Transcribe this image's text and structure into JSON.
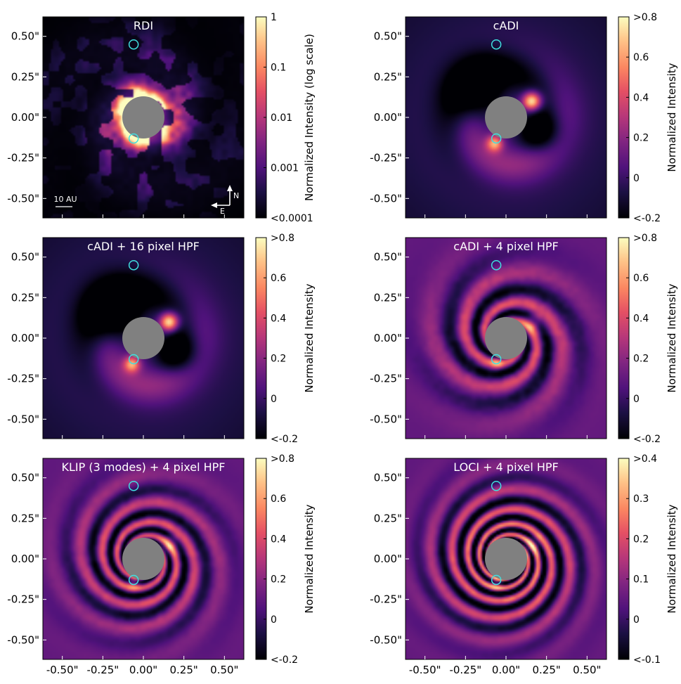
{
  "figure": {
    "axis_ticks": [
      "-0.50\"",
      "-0.25\"",
      "0.00\"",
      "0.25\"",
      "0.50\""
    ],
    "axis_tick_values": [
      -0.5,
      -0.25,
      0.0,
      0.25,
      0.5
    ],
    "axis_range": [
      -0.62,
      0.62
    ],
    "mask_color": "#808080",
    "circle_color": "#40e0e0",
    "label_color": "#ffffff",
    "colormap": "magma"
  },
  "chart_data": [
    {
      "type": "heatmap",
      "title": "RDI",
      "colorbar_label": "Normalized Intensity (log scale)",
      "colorbar_ticks": [
        "1",
        "0.1",
        "0.01",
        "0.001",
        "<0.0001"
      ],
      "colorbar_tick_fracs": [
        1.0,
        0.75,
        0.5,
        0.25,
        0.0
      ],
      "style": "rdi",
      "scale_bar_label": "10 AU",
      "compass": {
        "north": "N",
        "east": "E"
      },
      "circles": [
        {
          "x": -0.06,
          "y": 0.45
        },
        {
          "x": -0.06,
          "y": -0.13
        }
      ],
      "mask": {
        "x": 0.0,
        "y": 0.0,
        "r": 0.13
      }
    },
    {
      "type": "heatmap",
      "title": "cADI",
      "colorbar_label": "Normalized Intensity",
      "colorbar_ticks": [
        ">0.8",
        "0.6",
        "0.4",
        "0.2",
        "0",
        "<-0.2"
      ],
      "colorbar_tick_fracs": [
        1.0,
        0.8,
        0.6,
        0.4,
        0.2,
        0.0
      ],
      "style": "cadi",
      "circles": [
        {
          "x": -0.06,
          "y": 0.45
        },
        {
          "x": -0.06,
          "y": -0.13
        }
      ],
      "mask": {
        "x": 0.0,
        "y": 0.0,
        "r": 0.13
      }
    },
    {
      "type": "heatmap",
      "title": "cADI + 16 pixel HPF",
      "colorbar_label": "Normalized Intensity",
      "colorbar_ticks": [
        ">0.8",
        "0.6",
        "0.4",
        "0.2",
        "0",
        "<-0.2"
      ],
      "colorbar_tick_fracs": [
        1.0,
        0.8,
        0.6,
        0.4,
        0.2,
        0.0
      ],
      "style": "cadi16",
      "circles": [
        {
          "x": -0.06,
          "y": 0.45
        },
        {
          "x": -0.06,
          "y": -0.13
        }
      ],
      "mask": {
        "x": 0.0,
        "y": 0.0,
        "r": 0.13
      }
    },
    {
      "type": "heatmap",
      "title": "cADI + 4 pixel HPF",
      "colorbar_label": "Normalized Intensity",
      "colorbar_ticks": [
        ">0.8",
        "0.6",
        "0.4",
        "0.2",
        "0",
        "<-0.2"
      ],
      "colorbar_tick_fracs": [
        1.0,
        0.8,
        0.6,
        0.4,
        0.2,
        0.0
      ],
      "style": "cadi4",
      "circles": [
        {
          "x": -0.06,
          "y": 0.45
        },
        {
          "x": -0.06,
          "y": -0.13
        }
      ],
      "mask": {
        "x": 0.0,
        "y": 0.0,
        "r": 0.13
      }
    },
    {
      "type": "heatmap",
      "title": "KLIP (3 modes) + 4 pixel HPF",
      "colorbar_label": "Normalized Intensity",
      "colorbar_ticks": [
        ">0.8",
        "0.6",
        "0.4",
        "0.2",
        "0",
        "<-0.2"
      ],
      "colorbar_tick_fracs": [
        1.0,
        0.8,
        0.6,
        0.4,
        0.2,
        0.0
      ],
      "style": "klip",
      "circles": [
        {
          "x": -0.06,
          "y": 0.45
        },
        {
          "x": -0.06,
          "y": -0.13
        }
      ],
      "mask": {
        "x": 0.0,
        "y": 0.0,
        "r": 0.13
      }
    },
    {
      "type": "heatmap",
      "title": "LOCI + 4 pixel HPF",
      "colorbar_label": "Normalized Intensity",
      "colorbar_ticks": [
        ">0.4",
        "0.3",
        "0.2",
        "0.1",
        "0",
        "<-0.1"
      ],
      "colorbar_tick_fracs": [
        1.0,
        0.8,
        0.6,
        0.4,
        0.2,
        0.0
      ],
      "style": "loci",
      "circles": [
        {
          "x": -0.06,
          "y": 0.45
        },
        {
          "x": -0.06,
          "y": -0.13
        }
      ],
      "mask": {
        "x": 0.0,
        "y": 0.0,
        "r": 0.13
      }
    }
  ]
}
